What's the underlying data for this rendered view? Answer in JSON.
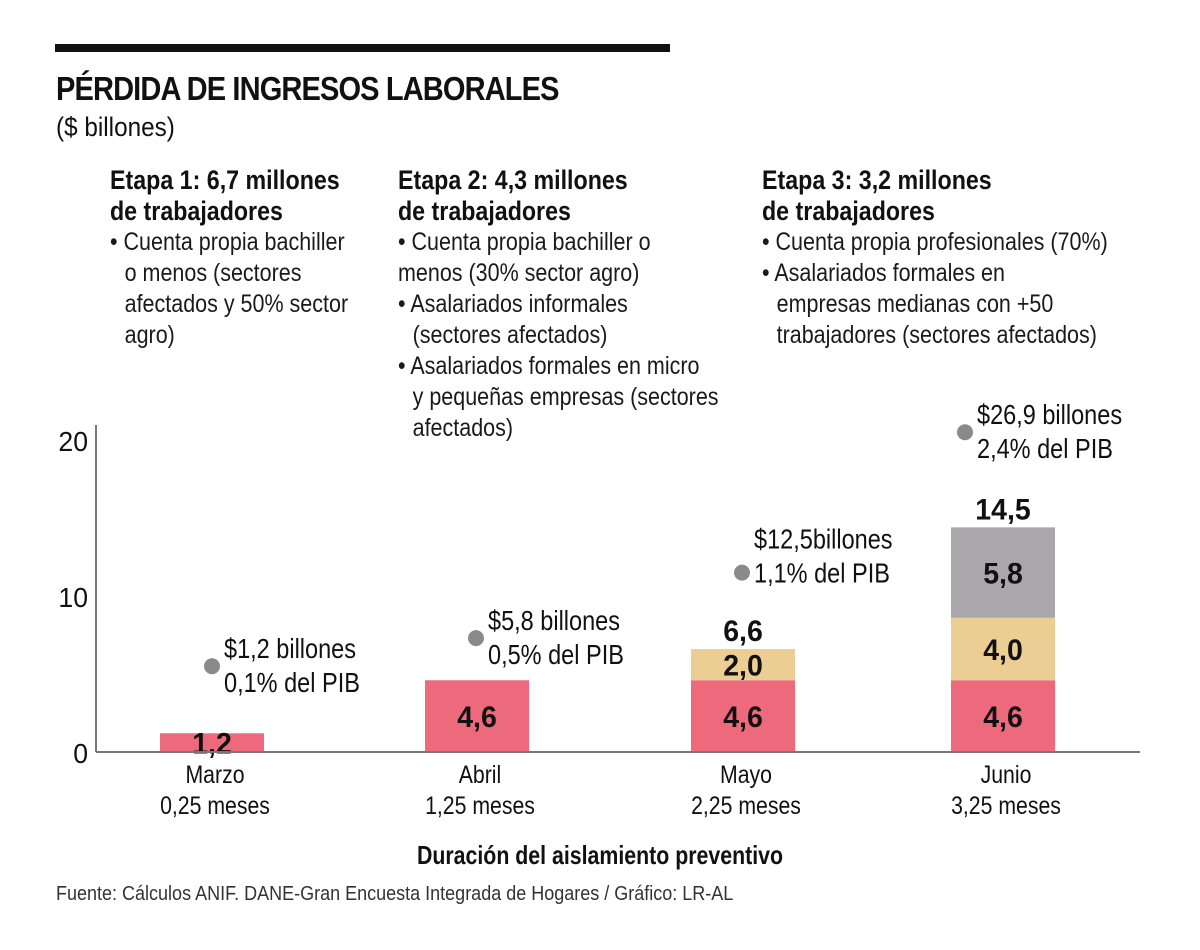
{
  "header": {
    "title": "PÉRDIDA DE INGRESOS LABORALES",
    "subtitle": "($ billones)"
  },
  "stages": [
    {
      "heading": [
        "Etapa 1:  6,7 millones",
        "de trabajadores"
      ],
      "lines": [
        {
          "text": "• Cuenta propia bachiller",
          "cont": false
        },
        {
          "text": "o menos (sectores",
          "cont": true
        },
        {
          "text": "afectados y 50% sector",
          "cont": true
        },
        {
          "text": "agro)",
          "cont": true
        }
      ]
    },
    {
      "heading": [
        "Etapa 2: 4,3 millones",
        "de trabajadores"
      ],
      "lines": [
        {
          "text": "• Cuenta propia bachiller o",
          "cont": false
        },
        {
          "text": "menos (30% sector agro)",
          "cont": false
        },
        {
          "text": "• Asalariados informales",
          "cont": false
        },
        {
          "text": "(sectores afectados)",
          "cont": true
        },
        {
          "text": "• Asalariados formales en micro",
          "cont": false
        },
        {
          "text": "y pequeñas empresas (sectores",
          "cont": true
        },
        {
          "text": "afectados)",
          "cont": true
        }
      ]
    },
    {
      "heading": [
        "Etapa 3: 3,2 millones",
        "de trabajadores"
      ],
      "lines": [
        {
          "text": "• Cuenta propia profesionales (70%)",
          "cont": false
        },
        {
          "text": "• Asalariados formales en",
          "cont": false
        },
        {
          "text": "empresas medianas con +50",
          "cont": true
        },
        {
          "text": "trabajadores (sectores afectados)",
          "cont": true
        }
      ]
    }
  ],
  "chart_data": {
    "type": "bar",
    "stacked": true,
    "title": "PÉRDIDA DE INGRESOS LABORALES",
    "ylabel": "$ billones",
    "xlabel": "Duración del aislamiento preventivo",
    "ylim": [
      0,
      20
    ],
    "yticks": [
      0,
      10,
      20
    ],
    "ytick_labels": [
      "0",
      "10",
      "20"
    ],
    "grid": false,
    "categories": [
      "Marzo",
      "Abril",
      "Mayo",
      "Junio"
    ],
    "category_sublabels": [
      "0,25 meses",
      "1,25 meses",
      "2,25 meses",
      "3,25 meses"
    ],
    "series": [
      {
        "name": "Etapa 1",
        "color": "#ec6a7c",
        "values": [
          1.2,
          4.6,
          4.6,
          4.6
        ],
        "labels": [
          "1,2",
          "4,6",
          "4,6",
          "4,6"
        ]
      },
      {
        "name": "Etapa 2",
        "color": "#ecce94",
        "values": [
          0,
          0,
          2.0,
          4.0
        ],
        "labels": [
          "",
          "",
          "2,0",
          "4,0"
        ]
      },
      {
        "name": "Etapa 3",
        "color": "#aaa7aa",
        "values": [
          0,
          0,
          0,
          5.8
        ],
        "labels": [
          "",
          "",
          "",
          "5,8"
        ]
      }
    ],
    "totals": [
      1.2,
      4.6,
      6.6,
      14.5
    ],
    "total_labels": [
      "",
      "",
      "6,6",
      "14,5"
    ],
    "cumulative_markers": [
      {
        "category": "Marzo",
        "value": 5.5,
        "line1": "$1,2 billones",
        "line2": "0,1% del PIB"
      },
      {
        "category": "Abril",
        "value": 7.3,
        "line1": "$5,8 billones",
        "line2": "0,5% del PIB"
      },
      {
        "category": "Mayo",
        "value": 11.5,
        "line1": "$12,5billones",
        "line2": "1,1% del PIB"
      },
      {
        "category": "Junio",
        "value": 20.5,
        "line1": "$26,9 billones",
        "line2": "2,4% del PIB"
      }
    ],
    "marker_color": "#8a8a8a",
    "axis_color": "#777777"
  },
  "footer": {
    "xaxis_title": "Duración del aislamiento preventivo",
    "source": "Fuente: Cálculos ANIF. DANE-Gran Encuesta Integrada de Hogares / Gráfico: LR-AL"
  }
}
